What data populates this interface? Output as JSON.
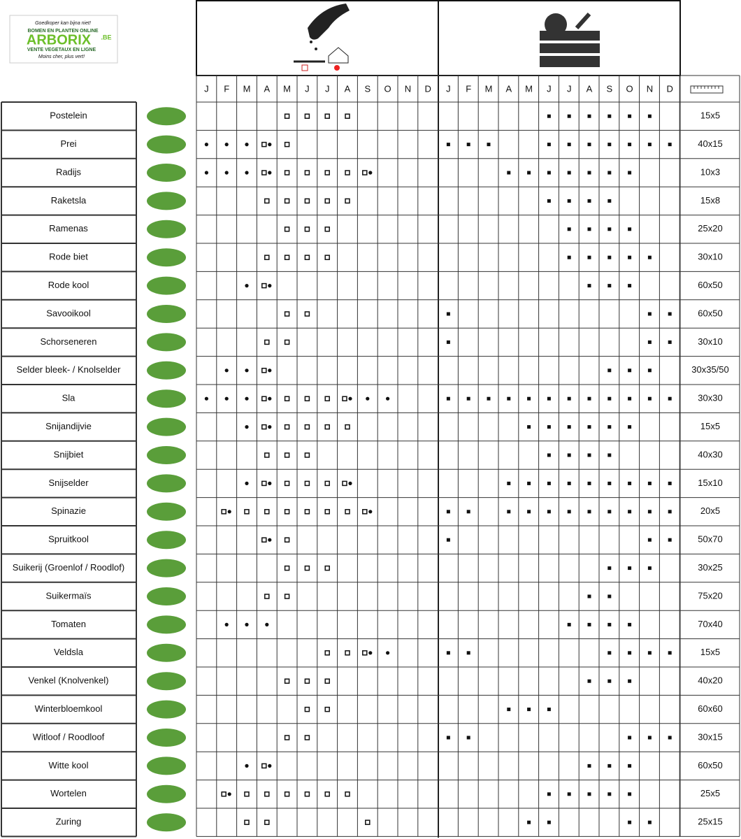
{
  "logo": {
    "tagline": "Goedkoper kan bijna niet!",
    "line1": "BOMEN EN PLANTEN ONLINE",
    "brand": "ARBORIX",
    "suffix": ".BE",
    "line2": "VENTE VEGETAUX EN LIGNE",
    "slogan": "Moins cher, plus vert!"
  },
  "sow_months": [
    "J",
    "F",
    "M",
    "A",
    "M",
    "J",
    "J",
    "A",
    "S",
    "O",
    "N",
    "D"
  ],
  "harvest_months": [
    "J",
    "F",
    "M",
    "A",
    "M",
    "J",
    "J",
    "A",
    "S",
    "O",
    "N",
    "D"
  ],
  "rows": [
    {
      "name": "Postelein",
      "sow_square": [
        4,
        5,
        6,
        7
      ],
      "sow_dot": [],
      "harvest": [
        5,
        6,
        7,
        8,
        9,
        10
      ],
      "spacing": "15x5"
    },
    {
      "name": "Prei",
      "sow_square": [
        3,
        4
      ],
      "sow_dot": [
        0,
        1,
        2,
        3
      ],
      "harvest": [
        0,
        1,
        2,
        5,
        6,
        7,
        8,
        9,
        10,
        11
      ],
      "spacing": "40x15"
    },
    {
      "name": "Radijs",
      "sow_square": [
        3,
        4,
        5,
        6,
        7,
        8
      ],
      "sow_dot": [
        0,
        1,
        2,
        3,
        8
      ],
      "harvest": [
        3,
        4,
        5,
        6,
        7,
        8,
        9
      ],
      "spacing": "10x3"
    },
    {
      "name": "Raketsla",
      "sow_square": [
        3,
        4,
        5,
        6,
        7
      ],
      "sow_dot": [],
      "harvest": [
        5,
        6,
        7,
        8
      ],
      "spacing": "15x8"
    },
    {
      "name": "Ramenas",
      "sow_square": [
        4,
        5,
        6
      ],
      "sow_dot": [],
      "harvest": [
        6,
        7,
        8,
        9
      ],
      "spacing": "25x20"
    },
    {
      "name": "Rode biet",
      "sow_square": [
        3,
        4,
        5,
        6
      ],
      "sow_dot": [],
      "harvest": [
        6,
        7,
        8,
        9,
        10
      ],
      "spacing": "30x10"
    },
    {
      "name": "Rode kool",
      "sow_square": [
        3
      ],
      "sow_dot": [
        2,
        3
      ],
      "harvest": [
        7,
        8,
        9
      ],
      "spacing": "60x50"
    },
    {
      "name": "Savooikool",
      "sow_square": [
        4,
        5
      ],
      "sow_dot": [],
      "harvest": [
        0,
        10,
        11
      ],
      "spacing": "60x50"
    },
    {
      "name": "Schorseneren",
      "sow_square": [
        3,
        4
      ],
      "sow_dot": [],
      "harvest": [
        0,
        10,
        11
      ],
      "spacing": "30x10"
    },
    {
      "name": "Selder bleek- / Knolselder",
      "sow_square": [
        3
      ],
      "sow_dot": [
        1,
        2,
        3
      ],
      "harvest": [
        8,
        9,
        10
      ],
      "spacing": "30x35/50"
    },
    {
      "name": "Sla",
      "sow_square": [
        3,
        4,
        5,
        6,
        7
      ],
      "sow_dot": [
        0,
        1,
        2,
        3,
        7,
        8,
        9
      ],
      "harvest": [
        0,
        1,
        2,
        3,
        4,
        5,
        6,
        7,
        8,
        9,
        10,
        11
      ],
      "spacing": "30x30"
    },
    {
      "name": "Snijandijvie",
      "sow_square": [
        3,
        4,
        5,
        6,
        7
      ],
      "sow_dot": [
        2,
        3
      ],
      "harvest": [
        4,
        5,
        6,
        7,
        8,
        9
      ],
      "spacing": "15x5"
    },
    {
      "name": "Snijbiet",
      "sow_square": [
        3,
        4,
        5
      ],
      "sow_dot": [],
      "harvest": [
        5,
        6,
        7,
        8
      ],
      "spacing": "40x30"
    },
    {
      "name": "Snijselder",
      "sow_square": [
        3,
        4,
        5,
        6,
        7
      ],
      "sow_dot": [
        2,
        3,
        7
      ],
      "harvest": [
        3,
        4,
        5,
        6,
        7,
        8,
        9,
        10,
        11
      ],
      "spacing": "15x10"
    },
    {
      "name": "Spinazie",
      "sow_square": [
        1,
        2,
        3,
        4,
        5,
        6,
        7,
        8
      ],
      "sow_dot": [
        1,
        8
      ],
      "harvest": [
        0,
        1,
        3,
        4,
        5,
        6,
        7,
        8,
        9,
        10,
        11
      ],
      "spacing": "20x5"
    },
    {
      "name": "Spruitkool",
      "sow_square": [
        3,
        4
      ],
      "sow_dot": [
        3
      ],
      "harvest": [
        0,
        10,
        11
      ],
      "spacing": "50x70"
    },
    {
      "name": "Suikerij (Groenlof / Roodlof)",
      "sow_square": [
        4,
        5,
        6
      ],
      "sow_dot": [],
      "harvest": [
        8,
        9,
        10
      ],
      "spacing": "30x25"
    },
    {
      "name": "Suikermaïs",
      "sow_square": [
        3,
        4
      ],
      "sow_dot": [],
      "harvest": [
        7,
        8
      ],
      "spacing": "75x20"
    },
    {
      "name": "Tomaten",
      "sow_square": [],
      "sow_dot": [
        1,
        2,
        3
      ],
      "harvest": [
        6,
        7,
        8,
        9
      ],
      "spacing": "70x40"
    },
    {
      "name": "Veldsla",
      "sow_square": [
        6,
        7,
        8
      ],
      "sow_dot": [
        8,
        9
      ],
      "harvest": [
        0,
        1,
        8,
        9,
        10,
        11
      ],
      "spacing": "15x5"
    },
    {
      "name": "Venkel (Knolvenkel)",
      "sow_square": [
        4,
        5,
        6
      ],
      "sow_dot": [],
      "harvest": [
        7,
        8,
        9
      ],
      "spacing": "40x20"
    },
    {
      "name": "Winterbloemkool",
      "sow_square": [
        5,
        6
      ],
      "sow_dot": [],
      "harvest": [
        3,
        4,
        5
      ],
      "spacing": "60x60"
    },
    {
      "name": "Witloof / Roodloof",
      "sow_square": [
        4,
        5
      ],
      "sow_dot": [],
      "harvest": [
        0,
        1,
        9,
        10,
        11
      ],
      "spacing": "30x15"
    },
    {
      "name": "Witte kool",
      "sow_square": [
        3
      ],
      "sow_dot": [
        2,
        3
      ],
      "harvest": [
        7,
        8,
        9
      ],
      "spacing": "60x50"
    },
    {
      "name": "Wortelen",
      "sow_square": [
        1,
        2,
        3,
        4,
        5,
        6,
        7
      ],
      "sow_dot": [
        1
      ],
      "harvest": [
        5,
        6,
        7,
        8,
        9
      ],
      "spacing": "25x5"
    },
    {
      "name": "Zuring",
      "sow_square": [
        2,
        3,
        8
      ],
      "sow_dot": [],
      "harvest": [
        4,
        5,
        9,
        10
      ],
      "spacing": "25x15"
    }
  ]
}
